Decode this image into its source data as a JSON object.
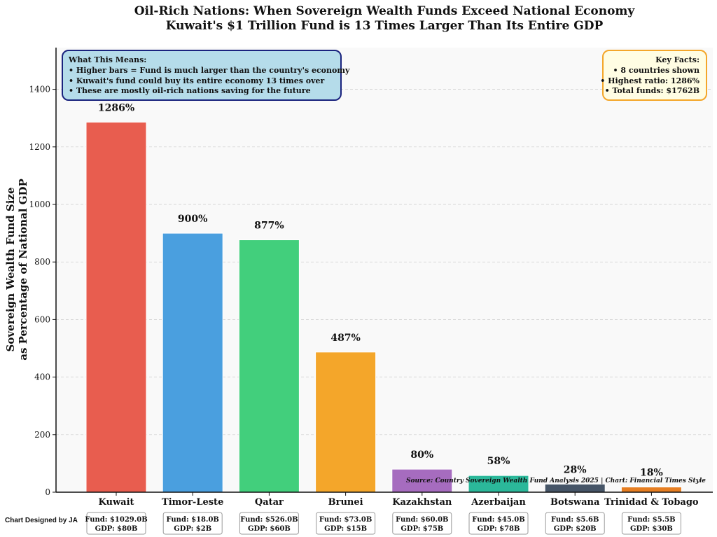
{
  "chart_data": {
    "type": "bar",
    "title": "Oil-Rich Nations: When Sovereign Wealth Funds Exceed National Economy",
    "subtitle": "Kuwait's $1 Trillion Fund is 13 Times Larger Than Its Entire GDP",
    "xlabel": "",
    "ylabel": "Sovereign Wealth Fund Size\nas Percentage of National GDP",
    "ylim": [
      0,
      1545
    ],
    "yticks": [
      0,
      200,
      400,
      600,
      800,
      1000,
      1200,
      1400
    ],
    "grid": "y-dashed",
    "categories": [
      "Kuwait",
      "Timor-Leste",
      "Qatar",
      "Brunei",
      "Kazakhstan",
      "Azerbaijan",
      "Botswana",
      "Trinidad & Tobago"
    ],
    "values": [
      1286,
      900,
      877,
      487,
      80,
      58,
      28,
      18
    ],
    "data_labels": [
      "1286%",
      "900%",
      "877%",
      "487%",
      "80%",
      "58%",
      "28%",
      "18%"
    ],
    "colors": [
      "#e85d4f",
      "#4a9fdf",
      "#42cf7c",
      "#f4a62a",
      "#a66cbf",
      "#2bb89a",
      "#465567",
      "#e67e22"
    ],
    "fund_labels": [
      "Fund: $1029.0B",
      "Fund: $18.0B",
      "Fund: $526.0B",
      "Fund: $73.0B",
      "Fund: $60.0B",
      "Fund: $45.0B",
      "Fund: $5.6B",
      "Fund: $5.5B"
    ],
    "gdp_labels": [
      "GDP: $80B",
      "GDP: $2B",
      "GDP: $60B",
      "GDP: $15B",
      "GDP: $75B",
      "GDP: $78B",
      "GDP: $20B",
      "GDP: $30B"
    ],
    "annotations": {
      "explainer": [
        "What This Means:",
        "• Higher bars = Fund is much larger than the country's economy",
        "• Kuwait's fund could buy its entire economy 13 times over",
        "• These are mostly oil-rich nations saving for the future"
      ],
      "key_facts": [
        "Key Facts:",
        "• 8 countries shown",
        "• Highest ratio: 1286%",
        "• Total funds: $1762B"
      ],
      "source": "Source: Country Sovereign Wealth Fund Analysis 2025 | Chart: Financial Times Style"
    }
  },
  "credit": "Chart Designed by JA"
}
